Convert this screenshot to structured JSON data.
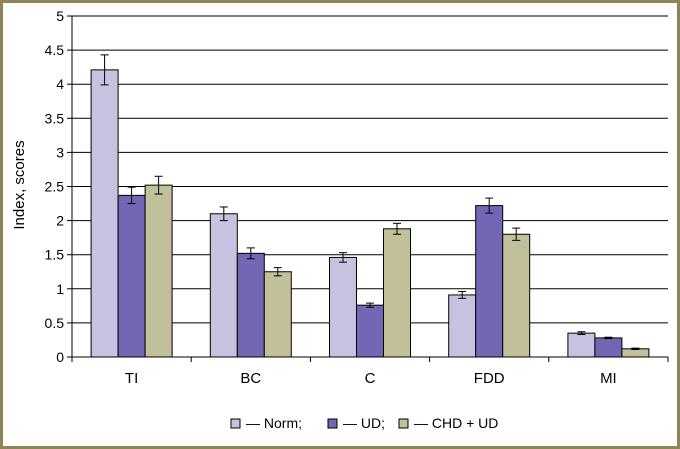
{
  "chart_data": {
    "type": "bar",
    "title": "",
    "xlabel": "",
    "ylabel": "Index, scores",
    "ylim": [
      0,
      5
    ],
    "yticks": [
      "0",
      "0.5",
      "1",
      "1.5",
      "2",
      "2.5",
      "3",
      "3.5",
      "4",
      "4.5",
      "5"
    ],
    "grid": true,
    "legend_position": "bottom",
    "categories": [
      "TI",
      "BC",
      "C",
      "FDD",
      "MI"
    ],
    "series": [
      {
        "name": "— Norm;",
        "color": "#c6c3e0",
        "values": [
          4.21,
          2.1,
          1.46,
          0.91,
          0.35
        ],
        "errors": [
          0.22,
          0.1,
          0.07,
          0.05,
          0.02
        ]
      },
      {
        "name": "— UD;",
        "color": "#7367b5",
        "values": [
          2.37,
          1.52,
          0.76,
          2.22,
          0.28
        ],
        "errors": [
          0.12,
          0.08,
          0.03,
          0.11,
          0.01
        ]
      },
      {
        "name": "— CHD + UD",
        "color": "#c1c09a",
        "values": [
          2.52,
          1.25,
          1.88,
          1.8,
          0.12
        ],
        "errors": [
          0.13,
          0.06,
          0.08,
          0.09,
          0.01
        ]
      }
    ]
  }
}
